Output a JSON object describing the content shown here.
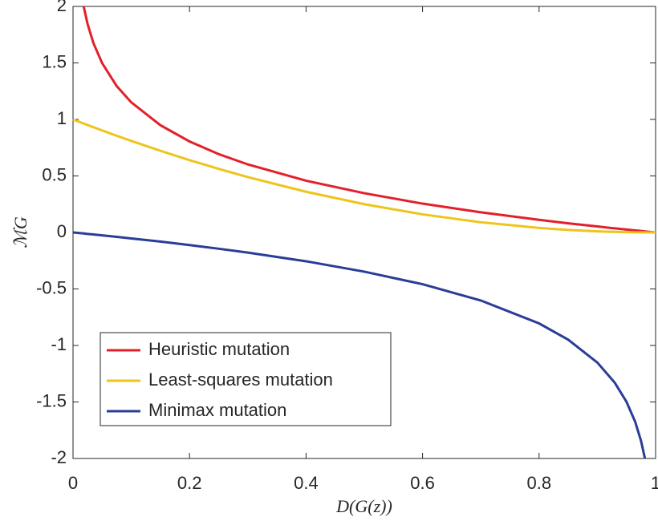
{
  "chart_data": {
    "type": "line",
    "xlabel": "D(G(z))",
    "ylabel": "ℳG",
    "x": [
      0,
      0.0183,
      0.025,
      0.035,
      0.05,
      0.075,
      0.1,
      0.15,
      0.2,
      0.25,
      0.3,
      0.4,
      0.5,
      0.6,
      0.7,
      0.8,
      0.85,
      0.9,
      0.93,
      0.95,
      0.965,
      0.975,
      0.9817,
      1
    ],
    "series": [
      {
        "name": "Heuristic mutation",
        "color": "#e3202a",
        "values": [
          null,
          2.0,
          1.844,
          1.676,
          1.498,
          1.295,
          1.151,
          0.949,
          0.805,
          0.693,
          0.602,
          0.458,
          0.347,
          0.255,
          0.178,
          0.112,
          0.081,
          0.053,
          0.036,
          0.026,
          0.018,
          0.013,
          0.009,
          0
        ]
      },
      {
        "name": "Least-squares mutation",
        "color": "#efc41a",
        "values": [
          1,
          0.9637,
          0.9506,
          0.9312,
          0.9025,
          0.8556,
          0.81,
          0.7225,
          0.64,
          0.5625,
          0.49,
          0.36,
          0.25,
          0.16,
          0.09,
          0.04,
          0.0225,
          0.01,
          0.0049,
          0.0025,
          0.0012,
          0.0006,
          0.0003,
          0
        ]
      },
      {
        "name": "Minimax mutation",
        "color": "#2a3d97",
        "values": [
          0,
          -0.009,
          -0.013,
          -0.018,
          -0.026,
          -0.039,
          -0.053,
          -0.081,
          -0.112,
          -0.144,
          -0.178,
          -0.255,
          -0.347,
          -0.458,
          -0.602,
          -0.805,
          -0.949,
          -1.151,
          -1.33,
          -1.498,
          -1.676,
          -1.844,
          -2.0,
          null
        ]
      }
    ],
    "xlim": [
      0,
      1
    ],
    "xticks": [
      0,
      0.2,
      0.4,
      0.6,
      0.8,
      1
    ],
    "ylim": [
      -2,
      2
    ],
    "yticks": [
      -2,
      -1.5,
      -1,
      -0.5,
      0,
      0.5,
      1,
      1.5,
      2
    ],
    "grid": false,
    "legend": "lower left"
  }
}
